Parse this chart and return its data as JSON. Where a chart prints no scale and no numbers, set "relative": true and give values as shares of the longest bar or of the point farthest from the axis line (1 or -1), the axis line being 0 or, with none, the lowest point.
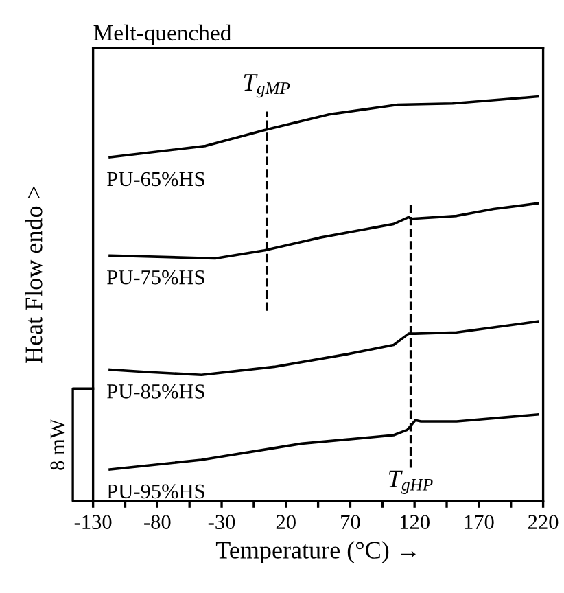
{
  "chart_data": {
    "type": "line",
    "relative": true,
    "title": "Melt-quenched",
    "xlabel": "Temperature (°C) →",
    "ylabel": "Heat Flow endo >",
    "xlim": [
      -130,
      220
    ],
    "xticks": [
      -130,
      {
        "value": -105,
        "label": null
      },
      -80,
      {
        "value": -55,
        "label": null
      },
      -30,
      {
        "value": -5,
        "label": null
      },
      20,
      {
        "value": 45,
        "label": null
      },
      70,
      {
        "value": 95,
        "label": null
      },
      120,
      {
        "value": 145,
        "label": null
      },
      170,
      {
        "value": 195,
        "label": null
      },
      220
    ],
    "series": [
      {
        "name": "PU-65%HS",
        "color": "#000000",
        "x": [
          -117,
          -42.5,
          5.5,
          53.5,
          107,
          149.6,
          215.7
        ],
        "values": [
          0.85,
          0.878,
          0.919,
          0.956,
          0.98,
          0.983,
          1.0
        ]
      },
      {
        "name": "PU-75%HS",
        "color": "#000000",
        "x": [
          -117,
          -35,
          3.4,
          46,
          103.7,
          115.4,
          117.5,
          152.7,
          181.5,
          215.7
        ],
        "values": [
          0.607,
          0.6,
          0.62,
          0.651,
          0.685,
          0.702,
          0.698,
          0.705,
          0.722,
          0.736
        ]
      },
      {
        "name": "PU-85%HS",
        "color": "#000000",
        "x": [
          -117,
          -88.4,
          -45.7,
          10.9,
          67.4,
          103.7,
          115.4,
          120.7,
          152.7,
          215.7
        ],
        "values": [
          0.325,
          0.319,
          0.312,
          0.332,
          0.363,
          0.386,
          0.414,
          0.414,
          0.417,
          0.444
        ]
      },
      {
        "name": "PU-95%HS",
        "color": "#000000",
        "x": [
          -117,
          -45.7,
          32.2,
          103.7,
          114.3,
          120.7,
          125,
          152.7,
          215.7
        ],
        "values": [
          0.078,
          0.102,
          0.142,
          0.163,
          0.176,
          0.2,
          0.197,
          0.197,
          0.214
        ]
      }
    ],
    "ref_lines": [
      {
        "axis": "x",
        "value": 5,
        "label": "T$_{gMP}$",
        "color": "#000000",
        "line_style": "dashed"
      },
      {
        "axis": "x",
        "value": 117,
        "label": "T$_{gHP}$",
        "color": "#000000",
        "line_style": "dashed"
      }
    ],
    "annotations": [
      "8 mW"
    ],
    "line_style": "solid",
    "marker": "none",
    "grid": false,
    "legend": false
  }
}
